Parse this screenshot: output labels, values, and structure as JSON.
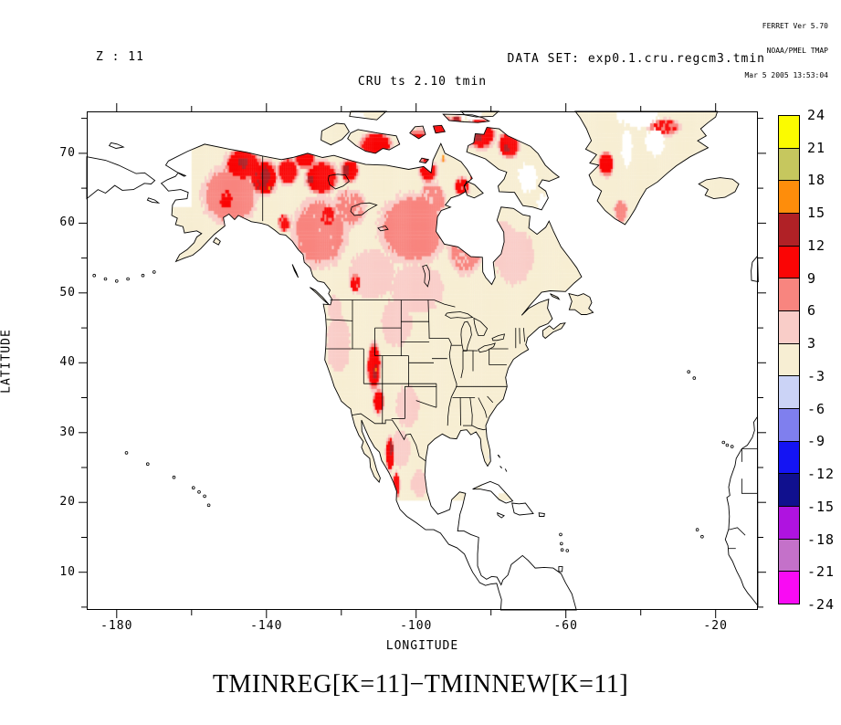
{
  "credit": {
    "line1": "FERRET Ver 5.70",
    "line2": "NOAA/PMEL TMAP",
    "line3": "Mar 5 2005 13:53:04"
  },
  "header": {
    "z_label": "Z : 11",
    "dataset_label": "DATA SET: exp0.1.cru.regcm3.tmin",
    "plot_title": "CRU ts 2.10 tmin"
  },
  "footer_expression": "TMINREG[K=11]−TMINNEW[K=11]",
  "chart_data": {
    "type": "heatmap",
    "title": "CRU ts 2.10 tmin",
    "z_level": "Z : 11",
    "dataset": "exp0.1.cru.regcm3.tmin",
    "expression": "TMINREG[K=11]-TMINNEW[K=11]",
    "xlabel": "LONGITUDE",
    "ylabel": "LATITUDE",
    "xlim": [
      -188,
      -8.7
    ],
    "ylim": [
      4.6,
      76
    ],
    "x_major_ticks": [
      -180,
      -140,
      -100,
      -60,
      -20
    ],
    "x_minor_ticks": [
      -160,
      -120,
      -80,
      -40
    ],
    "y_major_ticks": [
      70,
      60,
      50,
      40,
      30,
      20,
      10
    ],
    "y_minor_ticks": [
      75,
      65,
      55,
      45,
      35,
      25,
      15,
      5
    ],
    "colorbar": {
      "tick_labels": [
        "24",
        "21",
        "18",
        "15",
        "12",
        "9",
        "6",
        "3",
        "-3",
        "-6",
        "-9",
        "-12",
        "-15",
        "-18",
        "-21",
        "-24"
      ],
      "band_colors_top_to_bottom": [
        "#FBFB00",
        "#C6C75E",
        "#FE8D0B",
        "#B02126",
        "#FA0505",
        "#F8857F",
        "#F9CDC8",
        "#F7EED3",
        "#CBD3F6",
        "#7F7FEE",
        "#1414F3",
        "#10108E",
        "#AF13E0",
        "#C471C9",
        "#F90BF3"
      ]
    },
    "map_palette": {
      "thresholds": [
        3,
        6,
        9,
        12,
        15
      ],
      "colors": [
        "#F7EED3",
        "#F9CDC8",
        "#F8857F",
        "#FA0505",
        "#B02126",
        "#FE8D0B"
      ],
      "negative_color": "#CBD3F6"
    },
    "grid_step_deg": 0.5,
    "base_value": 2,
    "data_extent": {
      "lat_min": 20.3,
      "lon_min": -168.5,
      "europe_africa_nodata_lon_min": -32,
      "europe_africa_nodata_lat_max": 58.5,
      "pacific_nodata_lon_max": -151,
      "pacific_nodata_lat_max": 40,
      "west_alaska_nodata_lon_max": -160,
      "west_alaska_nodata_lat_min": 62
    },
    "anomaly_blobs": [
      {
        "c": [
          -146.5,
          68.2
        ],
        "r": [
          5,
          2.4
        ],
        "v": 11
      },
      {
        "c": [
          -141,
          66.3
        ],
        "r": [
          4,
          2.6
        ],
        "v": 11.5
      },
      {
        "c": [
          -134.5,
          67.2
        ],
        "r": [
          3,
          2
        ],
        "v": 10.5
      },
      {
        "c": [
          -125.5,
          66.3
        ],
        "r": [
          4.5,
          2.6
        ],
        "v": 11
      },
      {
        "c": [
          -118,
          67.3
        ],
        "r": [
          2.6,
          1.8
        ],
        "v": 10.5
      },
      {
        "c": [
          -130,
          69
        ],
        "r": [
          3,
          1.5
        ],
        "v": 10
      },
      {
        "c": [
          -111,
          70.8
        ],
        "r": [
          4.5,
          2.2
        ],
        "v": 11
      },
      {
        "c": [
          -100,
          70.8
        ],
        "r": [
          4.5,
          2.4
        ],
        "v": 11.5
      },
      {
        "c": [
          -93,
          73.2
        ],
        "r": [
          3.5,
          2
        ],
        "v": 11
      },
      {
        "c": [
          -83,
          72.6
        ],
        "r": [
          4,
          2.4
        ],
        "v": 11
      },
      {
        "c": [
          -75.5,
          71
        ],
        "r": [
          3,
          2
        ],
        "v": 10.5
      },
      {
        "c": [
          -97,
          67.2
        ],
        "r": [
          2.6,
          1.6
        ],
        "v": 10
      },
      {
        "c": [
          -88,
          65
        ],
        "r": [
          2.2,
          1.5
        ],
        "v": 9.5
      },
      {
        "c": [
          -151,
          63.2
        ],
        "r": [
          2.2,
          1.6
        ],
        "v": 9.5
      },
      {
        "c": [
          -124,
          60.8
        ],
        "r": [
          2.2,
          1.6
        ],
        "v": 9.5
      },
      {
        "c": [
          -116.5,
          51.2
        ],
        "r": [
          1.6,
          1.4
        ],
        "v": 9.5
      },
      {
        "c": [
          -135.5,
          59.8
        ],
        "r": [
          1.8,
          1.4
        ],
        "v": 9.5
      },
      {
        "c": [
          -111.5,
          39.3
        ],
        "r": [
          1.9,
          3.6
        ],
        "v": 11
      },
      {
        "c": [
          -110.3,
          34.3
        ],
        "r": [
          1.6,
          1.9
        ],
        "v": 10
      },
      {
        "c": [
          -107.2,
          26.8
        ],
        "r": [
          1.3,
          2.6
        ],
        "v": 10.5
      },
      {
        "c": [
          -105.5,
          22.3
        ],
        "r": [
          1.1,
          1.9
        ],
        "v": 10
      },
      {
        "c": [
          -49.5,
          68.3
        ],
        "r": [
          2.2,
          1.9
        ],
        "v": 10.5
      },
      {
        "c": [
          -34,
          73.5
        ],
        "r": [
          4.5,
          1.3
        ],
        "v": 9
      },
      {
        "c": [
          -140.5,
          66.6
        ],
        "r": [
          1.7,
          1.2
        ],
        "v": 13.5
      },
      {
        "c": [
          -146.5,
          68.5
        ],
        "r": [
          1.5,
          1
        ],
        "v": 13
      },
      {
        "c": [
          -119,
          67.3
        ],
        "r": [
          1.1,
          0.9
        ],
        "v": 13.5
      },
      {
        "c": [
          -128.5,
          66
        ],
        "r": [
          1.1,
          0.8
        ],
        "v": 13
      },
      {
        "c": [
          -97.5,
          69.5
        ],
        "r": [
          1.3,
          1
        ],
        "v": 13.5
      },
      {
        "c": [
          -84,
          72.2
        ],
        "r": [
          1.5,
          1.1
        ],
        "v": 13.5
      },
      {
        "c": [
          -89.5,
          74.4
        ],
        "r": [
          1.3,
          0.9
        ],
        "v": 13
      },
      {
        "c": [
          -76.2,
          70.4
        ],
        "r": [
          1,
          0.8
        ],
        "v": 13
      },
      {
        "c": [
          -111.2,
          38.4
        ],
        "r": [
          0.8,
          1.3
        ],
        "v": 13.8
      },
      {
        "c": [
          -106.9,
          27.6
        ],
        "r": [
          0.6,
          1.1
        ],
        "v": 13
      },
      {
        "c": [
          -139.3,
          64.6
        ],
        "r": [
          0.5,
          0.4
        ],
        "v": 16.5
      },
      {
        "c": [
          -93,
          69
        ],
        "r": [
          0.5,
          0.4
        ],
        "v": 16.5
      },
      {
        "c": [
          -85.5,
          66.6
        ],
        "r": [
          0.45,
          0.35
        ],
        "v": 16
      },
      {
        "c": [
          -111.1,
          38.8
        ],
        "r": [
          0.45,
          0.35
        ],
        "v": 16.8
      },
      {
        "c": [
          -150,
          63.8
        ],
        "r": [
          8,
          4.5
        ],
        "v": 7.5
      },
      {
        "c": [
          -126,
          58.5
        ],
        "r": [
          8,
          5.5
        ],
        "v": 6.8
      },
      {
        "c": [
          -101,
          59
        ],
        "r": [
          10,
          5.5
        ],
        "v": 7
      },
      {
        "c": [
          -87,
          56
        ],
        "r": [
          5,
          4
        ],
        "v": 6.5
      },
      {
        "c": [
          -118,
          62
        ],
        "r": [
          5,
          3
        ],
        "v": 6.5
      },
      {
        "c": [
          -96,
          63
        ],
        "r": [
          4,
          3
        ],
        "v": 6.5
      },
      {
        "c": [
          -112,
          52.5
        ],
        "r": [
          7,
          4
        ],
        "v": 5
      },
      {
        "c": [
          -100,
          50.5
        ],
        "r": [
          8,
          4
        ],
        "v": 4.6
      },
      {
        "c": [
          -74,
          55
        ],
        "r": [
          6,
          4.5
        ],
        "v": 4.6
      },
      {
        "c": [
          -77,
          58
        ],
        "r": [
          3,
          2.5
        ],
        "v": 4.8
      },
      {
        "c": [
          -121,
          42.5
        ],
        "r": [
          3.5,
          4.5
        ],
        "v": 5
      },
      {
        "c": [
          -122,
          47.5
        ],
        "r": [
          2,
          2
        ],
        "v": 5
      },
      {
        "c": [
          -105.5,
          45.5
        ],
        "r": [
          4.5,
          4
        ],
        "v": 4.6
      },
      {
        "c": [
          -102.5,
          33.5
        ],
        "r": [
          3.5,
          3.5
        ],
        "v": 4.6
      },
      {
        "c": [
          -104.5,
          27.5
        ],
        "r": [
          3,
          3
        ],
        "v": 5
      },
      {
        "c": [
          -99.5,
          22.5
        ],
        "r": [
          2.4,
          2.2
        ],
        "v": 4.8
      },
      {
        "c": [
          -45.5,
          61.5
        ],
        "r": [
          2,
          1.8
        ],
        "v": 7
      }
    ],
    "negative_specks": [
      {
        "c": [
          -57,
          55.2
        ],
        "r": [
          0.45,
          0.35
        ],
        "v": -4
      },
      {
        "c": [
          -80.3,
          26.2
        ],
        "r": [
          0.35,
          0.3
        ],
        "v": -4
      }
    ],
    "nodata_holes": [
      {
        "c": [
          -70.5,
          66.3
        ],
        "r": [
          2.6,
          2
        ]
      },
      {
        "c": [
          -66,
          62.6
        ],
        "r": [
          1.8,
          1.4
        ]
      },
      {
        "c": [
          -85.5,
          75.8
        ],
        "r": [
          3.2,
          1.4
        ]
      },
      {
        "c": [
          -104.5,
          73.6
        ],
        "r": [
          1.8,
          1.1
        ]
      },
      {
        "c": [
          -116,
          74.8
        ],
        "r": [
          2.2,
          1.2
        ]
      },
      {
        "c": [
          -41,
          75.6
        ],
        "r": [
          5.5,
          2.2
        ]
      },
      {
        "c": [
          -36.5,
          71.3
        ],
        "r": [
          2.6,
          1.9
        ]
      },
      {
        "c": [
          -44,
          70.5
        ],
        "r": [
          1.5,
          2.5
        ]
      },
      {
        "c": [
          -79.5,
          21.8
        ],
        "r": [
          3.6,
          1.1
        ]
      }
    ]
  }
}
